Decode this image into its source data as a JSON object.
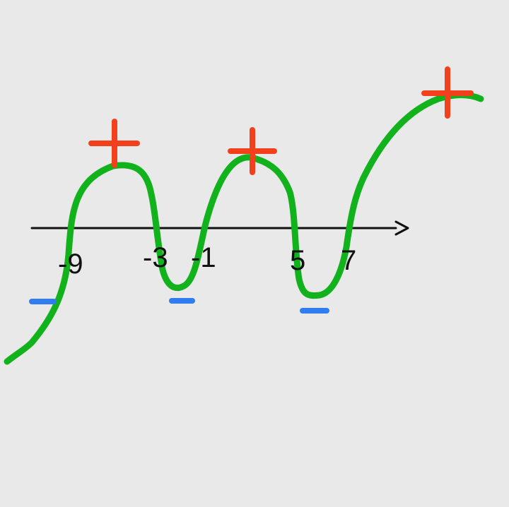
{
  "diagram": {
    "type": "sign-chart",
    "roots": [
      "-9",
      "-3",
      "-1",
      "5",
      "7"
    ],
    "signs": [
      "-",
      "+",
      "-",
      "+",
      "-",
      "+"
    ],
    "colors": {
      "background": "#e9e9e9",
      "curve": "#11b21b",
      "axis": "#111111",
      "plus": "#f2401c",
      "minus": "#2f7df0"
    }
  }
}
